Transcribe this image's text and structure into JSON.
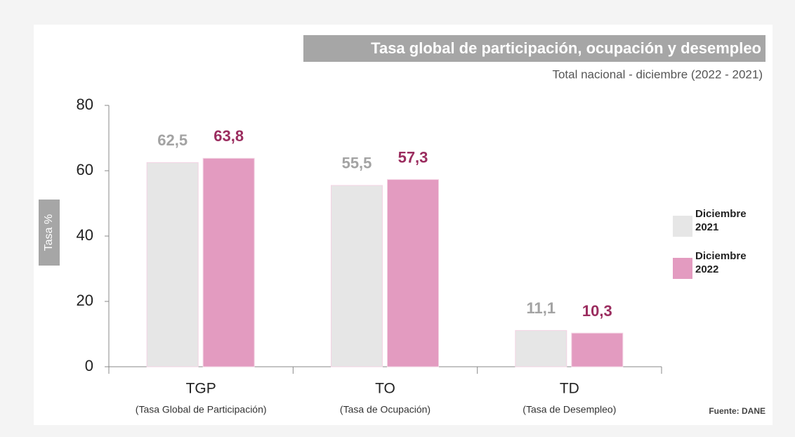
{
  "chart_data": {
    "type": "bar",
    "title": "Tasa global de participación, ocupación y desempleo",
    "subtitle": "Total nacional - diciembre (2022 - 2021)",
    "y_label": "Tasa %",
    "source": "Fuente: DANE",
    "categories": [
      "TGP",
      "TO",
      "TD"
    ],
    "category_descriptions": [
      "(Tasa Global de Participación)",
      "(Tasa de Ocupación)",
      "(Tasa de Desempleo)"
    ],
    "series": [
      {
        "name": "Diciembre 2021",
        "color": "#e6e6e6",
        "label_color": "#a3a3a3",
        "values": [
          62.5,
          55.5,
          11.1
        ],
        "value_labels": [
          "62,5",
          "55,5",
          "11,1"
        ]
      },
      {
        "name": "Diciembre 2022",
        "color": "#e39bc0",
        "label_color": "#9b2d5f",
        "values": [
          63.8,
          57.3,
          10.3
        ],
        "value_labels": [
          "63,8",
          "57,3",
          "10,3"
        ]
      }
    ],
    "ylim": [
      0,
      80
    ],
    "yticks": [
      0,
      20,
      40,
      60,
      80
    ]
  }
}
